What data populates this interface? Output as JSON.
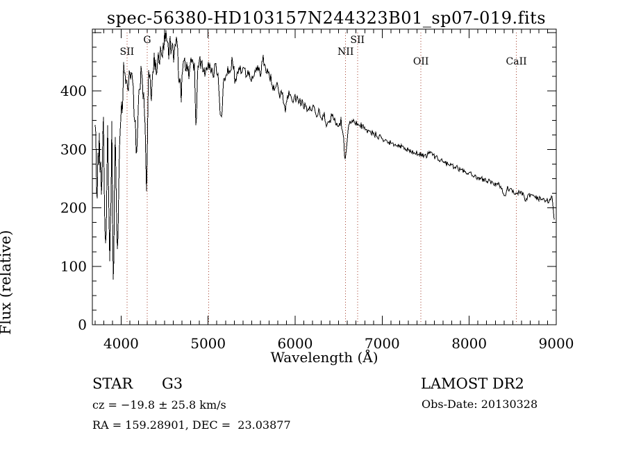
{
  "title": "spec-56380-HD103157N244323B01_sp07-019.fits",
  "footer": {
    "class_label": "STAR",
    "subclass": "G3",
    "cz": "cz = −19.8 ± 25.8 km/s",
    "radec": "RA = 159.28901, DEC =  23.03877",
    "survey": "LAMOST DR2",
    "obs_date": "Obs-Date: 20130328"
  },
  "colors": {
    "background": "#ffffff",
    "spectrum": "#000000",
    "axis": "#000000",
    "line_marker": "#a23b28"
  },
  "chart_data": {
    "type": "line",
    "title": "spec-56380-HD103157N244323B01_sp07-019.fits",
    "xlabel": "Wavelength (Å)",
    "ylabel": "Flux (relative)",
    "xlim": [
      3670,
      9000
    ],
    "ylim": [
      0,
      506
    ],
    "x_ticks": [
      4000,
      5000,
      6000,
      7000,
      8000,
      9000
    ],
    "y_ticks": [
      0,
      100,
      200,
      300,
      400
    ],
    "x_minor_step": 100,
    "y_minor_step": 25,
    "grid": false,
    "legend": "none",
    "spectral_lines": [
      {
        "label": "SII",
        "wavelength": 4068,
        "row": 1
      },
      {
        "label": "G",
        "wavelength": 4300,
        "row": 0
      },
      {
        "label": "",
        "wavelength": 5007,
        "row": 0
      },
      {
        "label": "NII",
        "wavelength": 6580,
        "row": 1
      },
      {
        "label": "SII",
        "wavelength": 6716,
        "row": 0
      },
      {
        "label": "OII",
        "wavelength": 7445,
        "row": 2
      },
      {
        "label": "CaII",
        "wavelength": 8542,
        "row": 2
      }
    ],
    "series": [
      {
        "name": "flux",
        "x": [
          3702,
          3726,
          3750,
          3774,
          3798,
          3822,
          3846,
          3870,
          3894,
          3910,
          3934,
          3958,
          3982,
          4006,
          4030,
          4062,
          4094,
          4125,
          4157,
          4181,
          4205,
          4237,
          4269,
          4293,
          4317,
          4349,
          4381,
          4413,
          4445,
          4477,
          4509,
          4541,
          4573,
          4605,
          4637,
          4669,
          4693,
          4717,
          4749,
          4781,
          4813,
          4845,
          4861,
          4877,
          4909,
          4941,
          4973,
          4997,
          5021,
          5053,
          5085,
          5117,
          5149,
          5181,
          5213,
          5245,
          5277,
          5309,
          5341,
          5373,
          5405,
          5437,
          5469,
          5501,
          5533,
          5565,
          5597,
          5629,
          5661,
          5693,
          5725,
          5757,
          5789,
          5821,
          5853,
          5885,
          5917,
          5949,
          5981,
          6013,
          6045,
          6077,
          6109,
          6141,
          6173,
          6205,
          6237,
          6269,
          6301,
          6333,
          6365,
          6397,
          6429,
          6461,
          6493,
          6525,
          6557,
          6570,
          6586,
          6618,
          6650,
          6682,
          6714,
          6762,
          6842,
          6922,
          7002,
          7082,
          7162,
          7241,
          7321,
          7401,
          7449,
          7497,
          7537,
          7577,
          7641,
          7721,
          7801,
          7881,
          7961,
          8040,
          8120,
          8200,
          8280,
          8360,
          8408,
          8440,
          8488,
          8544,
          8584,
          8616,
          8648,
          8680,
          8728,
          8776,
          8824,
          8872,
          8920,
          8952,
          8976
        ],
        "y": [
          300,
          220,
          330,
          180,
          340,
          95,
          345,
          150,
          330,
          95,
          300,
          125,
          330,
          390,
          420,
          400,
          430,
          410,
          360,
          280,
          420,
          430,
          380,
          245,
          420,
          400,
          445,
          430,
          460,
          480,
          500,
          470,
          485,
          460,
          480,
          420,
          390,
          450,
          440,
          430,
          455,
          440,
          322,
          430,
          450,
          440,
          430,
          445,
          450,
          430,
          440,
          430,
          340,
          420,
          440,
          430,
          455,
          420,
          440,
          435,
          440,
          430,
          435,
          420,
          430,
          440,
          430,
          455,
          440,
          430,
          420,
          400,
          410,
          395,
          400,
          365,
          395,
          390,
          385,
          390,
          380,
          385,
          375,
          370,
          365,
          370,
          360,
          365,
          355,
          360,
          345,
          350,
          355,
          350,
          345,
          350,
          330,
          271,
          300,
          345,
          350,
          348,
          345,
          340,
          330,
          325,
          318,
          312,
          308,
          304,
          298,
          294,
          291,
          288,
          295,
          290,
          284,
          277,
          272,
          267,
          262,
          256,
          251,
          247,
          243,
          238,
          220,
          233,
          228,
          224,
          226,
          222,
          213,
          222,
          219,
          217,
          215,
          214,
          212,
          218,
          180
        ]
      }
    ],
    "noise_regions": [
      {
        "up_to": 3905,
        "amp": 55
      },
      {
        "up_to": 4035,
        "amp": 45
      },
      {
        "up_to": 4700,
        "amp": 22
      },
      {
        "up_to": 5400,
        "amp": 12
      },
      {
        "up_to": 6560,
        "amp": 9
      },
      {
        "up_to": 7000,
        "amp": 6
      },
      {
        "up_to": 9000,
        "amp": 4.5
      }
    ]
  }
}
